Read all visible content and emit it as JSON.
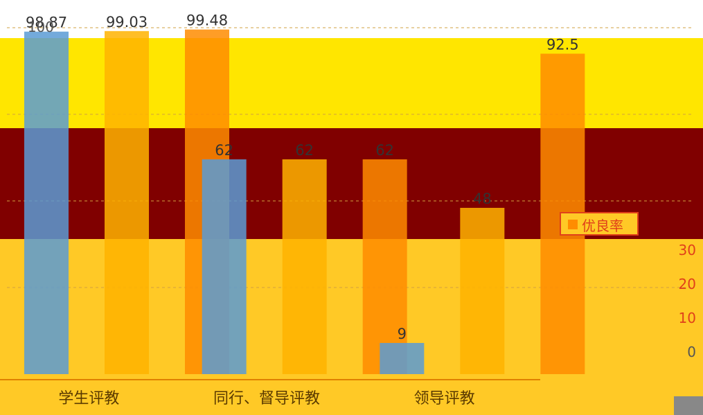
{
  "chart_data": {
    "type": "bar",
    "categories": [
      "学生评教",
      "同行、督导评教",
      "领导评教"
    ],
    "series": [
      {
        "name": "",
        "values": [
          98.87,
          62,
          9
        ],
        "color": "#5b9bd5"
      },
      {
        "name": "",
        "values": [
          99.03,
          62,
          48
        ],
        "color": "#ffb300"
      },
      {
        "name": "",
        "values": [
          99.48,
          62,
          92.5
        ],
        "color": "#ff8c00"
      }
    ],
    "labels_shown": [
      "98.87",
      "99.03",
      "62",
      "99.48",
      "92.5",
      "9"
    ],
    "y_left": {
      "ticks": [
        "100"
      ]
    },
    "y_right": {
      "ticks": [
        "30",
        "20",
        "10",
        "0"
      ]
    },
    "legend": {
      "items": [
        "优良率"
      ],
      "placement": "right"
    },
    "colors": {
      "background": "#ffc926",
      "dark_band": "#8b0000",
      "yellow_band": "#ffee00",
      "legend_text": "#e0401a"
    }
  }
}
